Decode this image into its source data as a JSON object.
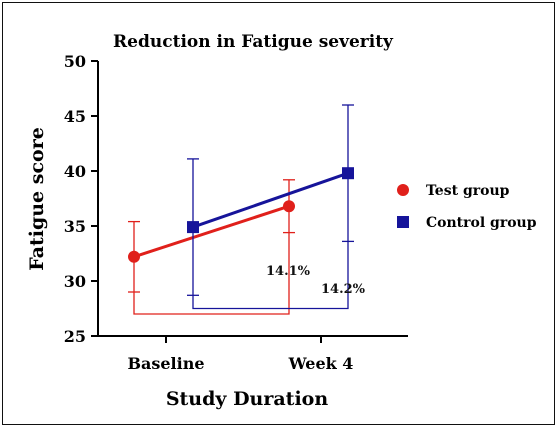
{
  "chart_data": {
    "type": "line",
    "title": "Reduction in Fatigue severity",
    "xlabel": "Study Duration",
    "ylabel": "Fatigue score",
    "categories": [
      "Baseline",
      "Week 4"
    ],
    "ylim": [
      25,
      50
    ],
    "yticks": [
      "25",
      "30",
      "35",
      "40",
      "45",
      "50"
    ],
    "grid": false,
    "legend_position": "right",
    "series": [
      {
        "name": "Test group",
        "color": "#e0201b",
        "marker": "circle",
        "values": [
          32.2,
          36.8
        ],
        "errors": [
          3.2,
          2.4
        ]
      },
      {
        "name": "Control group",
        "color": "#16149a",
        "marker": "square",
        "values": [
          34.9,
          39.8
        ],
        "errors": [
          6.2,
          6.2
        ]
      }
    ],
    "annotations": [
      {
        "text": "14.1%",
        "series": "Test group"
      },
      {
        "text": "14.2%",
        "series": "Control group"
      }
    ]
  }
}
